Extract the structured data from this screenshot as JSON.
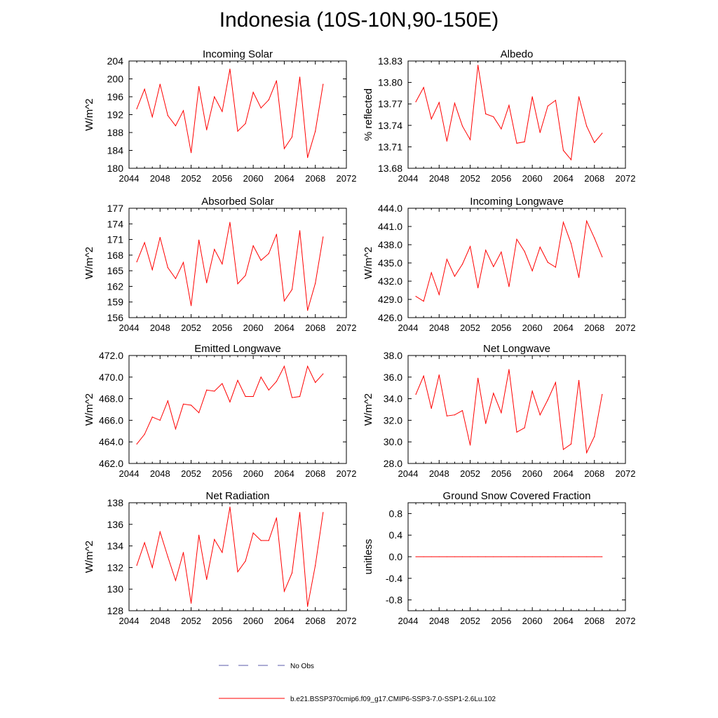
{
  "figure": {
    "title": "Indonesia (10S-10N,90-150E)",
    "line_color": "#ff0000",
    "obs_color": "#5a5aa8"
  },
  "legend": {
    "obs_label": "No Obs",
    "model_label": "b.e21.BSSP370cmip6.f09_g17.CMIP6-SSP3-7.0-SSP1-2.6Lu.102"
  },
  "chart_data": [
    {
      "type": "line",
      "title": "Incoming Solar",
      "ylabel": "W/m^2",
      "xlim": [
        2044,
        2072
      ],
      "ylim": [
        180,
        204
      ],
      "xticks": [
        "2044",
        "2048",
        "2052",
        "2056",
        "2060",
        "2064",
        "2068",
        "2072"
      ],
      "yticks": [
        "180",
        "184",
        "188",
        "192",
        "196",
        "200",
        "204"
      ],
      "x": [
        2045,
        2046,
        2047,
        2048,
        2049,
        2050,
        2051,
        2052,
        2053,
        2054,
        2055,
        2056,
        2057,
        2058,
        2059,
        2060,
        2061,
        2062,
        2063,
        2064,
        2065,
        2066,
        2067,
        2068,
        2069
      ],
      "series": [
        {
          "values": [
            193.3,
            197.7,
            191.5,
            198.8,
            191.8,
            189.5,
            192.9,
            183.5,
            198.3,
            188.6,
            196.0,
            192.7,
            202.2,
            188.3,
            190.0,
            197.0,
            193.5,
            195.3,
            199.6,
            184.4,
            187.0,
            200.4,
            182.4,
            188.3,
            198.8
          ]
        }
      ]
    },
    {
      "type": "line",
      "title": "Albedo",
      "ylabel": "% reflected",
      "xlim": [
        2044,
        2072
      ],
      "ylim": [
        13.68,
        13.83
      ],
      "xticks": [
        "2044",
        "2048",
        "2052",
        "2056",
        "2060",
        "2064",
        "2068",
        "2072"
      ],
      "yticks": [
        "13.68",
        "13.71",
        "13.74",
        "13.77",
        "13.80",
        "13.83"
      ],
      "x": [
        2045,
        2046,
        2047,
        2048,
        2049,
        2050,
        2051,
        2052,
        2053,
        2054,
        2055,
        2056,
        2057,
        2058,
        2059,
        2060,
        2061,
        2062,
        2063,
        2064,
        2065,
        2066,
        2067,
        2068,
        2069
      ],
      "series": [
        {
          "values": [
            13.773,
            13.793,
            13.749,
            13.772,
            13.718,
            13.771,
            13.739,
            13.72,
            13.824,
            13.756,
            13.752,
            13.735,
            13.768,
            13.715,
            13.717,
            13.78,
            13.73,
            13.767,
            13.775,
            13.705,
            13.692,
            13.78,
            13.739,
            13.716,
            13.729
          ]
        }
      ]
    },
    {
      "type": "line",
      "title": "Absorbed Solar",
      "ylabel": "W/m^2",
      "xlim": [
        2044,
        2072
      ],
      "ylim": [
        156,
        177
      ],
      "xticks": [
        "2044",
        "2048",
        "2052",
        "2056",
        "2060",
        "2064",
        "2068",
        "2072"
      ],
      "yticks": [
        "156",
        "159",
        "162",
        "165",
        "168",
        "171",
        "174",
        "177"
      ],
      "x": [
        2045,
        2046,
        2047,
        2048,
        2049,
        2050,
        2051,
        2052,
        2053,
        2054,
        2055,
        2056,
        2057,
        2058,
        2059,
        2060,
        2061,
        2062,
        2063,
        2064,
        2065,
        2066,
        2067,
        2068,
        2069
      ],
      "series": [
        {
          "values": [
            166.7,
            170.4,
            165.2,
            171.4,
            165.6,
            163.5,
            166.6,
            158.3,
            170.9,
            162.7,
            169.1,
            166.3,
            174.3,
            162.5,
            164.1,
            169.8,
            167.0,
            168.3,
            172.0,
            159.2,
            161.4,
            172.7,
            157.4,
            162.6,
            171.5
          ]
        }
      ]
    },
    {
      "type": "line",
      "title": "Incoming Longwave",
      "ylabel": "W/m^2",
      "xlim": [
        2044,
        2072
      ],
      "ylim": [
        426.0,
        444.0
      ],
      "xticks": [
        "2044",
        "2048",
        "2052",
        "2056",
        "2060",
        "2064",
        "2068",
        "2072"
      ],
      "yticks": [
        "426.0",
        "429.0",
        "432.0",
        "435.0",
        "438.0",
        "441.0",
        "444.0"
      ],
      "x": [
        2045,
        2046,
        2047,
        2048,
        2049,
        2050,
        2051,
        2052,
        2053,
        2054,
        2055,
        2056,
        2057,
        2058,
        2059,
        2060,
        2061,
        2062,
        2063,
        2064,
        2065,
        2066,
        2067,
        2068,
        2069
      ],
      "series": [
        {
          "values": [
            429.5,
            428.7,
            433.4,
            429.8,
            435.6,
            432.8,
            434.8,
            437.7,
            430.9,
            437.1,
            434.4,
            436.8,
            431.1,
            438.9,
            436.9,
            433.7,
            437.6,
            435.1,
            434.3,
            441.7,
            438.2,
            432.6,
            441.9,
            439.1,
            436.0
          ]
        }
      ]
    },
    {
      "type": "line",
      "title": "Emitted Longwave",
      "ylabel": "W/m^2",
      "xlim": [
        2044,
        2072
      ],
      "ylim": [
        462.0,
        472.0
      ],
      "xticks": [
        "2044",
        "2048",
        "2052",
        "2056",
        "2060",
        "2064",
        "2068",
        "2072"
      ],
      "yticks": [
        "462.0",
        "464.0",
        "466.0",
        "468.0",
        "470.0",
        "472.0"
      ],
      "x": [
        2045,
        2046,
        2047,
        2048,
        2049,
        2050,
        2051,
        2052,
        2053,
        2054,
        2055,
        2056,
        2057,
        2058,
        2059,
        2060,
        2061,
        2062,
        2063,
        2064,
        2065,
        2066,
        2067,
        2068,
        2069
      ],
      "series": [
        {
          "values": [
            463.8,
            464.7,
            466.3,
            466.0,
            467.8,
            465.2,
            467.5,
            467.4,
            466.7,
            468.8,
            468.7,
            469.4,
            467.7,
            469.7,
            468.2,
            468.2,
            470.0,
            468.8,
            469.6,
            471.0,
            468.1,
            468.2,
            471.0,
            469.5,
            470.3
          ]
        }
      ]
    },
    {
      "type": "line",
      "title": "Net Longwave",
      "ylabel": "W/m^2",
      "xlim": [
        2044,
        2072
      ],
      "ylim": [
        28.0,
        38.0
      ],
      "xticks": [
        "2044",
        "2048",
        "2052",
        "2056",
        "2060",
        "2064",
        "2068",
        "2072"
      ],
      "yticks": [
        "28.0",
        "30.0",
        "32.0",
        "34.0",
        "36.0",
        "38.0"
      ],
      "x": [
        2045,
        2046,
        2047,
        2048,
        2049,
        2050,
        2051,
        2052,
        2053,
        2054,
        2055,
        2056,
        2057,
        2058,
        2059,
        2060,
        2061,
        2062,
        2063,
        2064,
        2065,
        2066,
        2067,
        2068,
        2069
      ],
      "series": [
        {
          "values": [
            34.4,
            36.1,
            33.1,
            36.2,
            32.4,
            32.5,
            32.9,
            29.7,
            35.9,
            31.7,
            34.5,
            32.7,
            36.7,
            30.9,
            31.3,
            34.7,
            32.5,
            33.9,
            35.5,
            29.3,
            29.8,
            35.7,
            29.0,
            30.5,
            34.4
          ]
        }
      ]
    },
    {
      "type": "line",
      "title": "Net Radiation",
      "ylabel": "W/m^2",
      "xlim": [
        2044,
        2072
      ],
      "ylim": [
        128,
        138
      ],
      "xticks": [
        "2044",
        "2048",
        "2052",
        "2056",
        "2060",
        "2064",
        "2068",
        "2072"
      ],
      "yticks": [
        "128",
        "130",
        "132",
        "134",
        "136",
        "138"
      ],
      "x": [
        2045,
        2046,
        2047,
        2048,
        2049,
        2050,
        2051,
        2052,
        2053,
        2054,
        2055,
        2056,
        2057,
        2058,
        2059,
        2060,
        2061,
        2062,
        2063,
        2064,
        2065,
        2066,
        2067,
        2068,
        2069
      ],
      "series": [
        {
          "values": [
            132.2,
            134.3,
            132.0,
            135.3,
            133.0,
            130.8,
            133.4,
            128.7,
            135.0,
            130.9,
            134.6,
            133.4,
            137.6,
            131.6,
            132.6,
            135.2,
            134.5,
            134.5,
            136.6,
            129.8,
            131.5,
            137.1,
            128.4,
            132.2,
            137.1
          ]
        }
      ]
    },
    {
      "type": "line",
      "title": "Ground Snow Covered Fraction",
      "ylabel": "unitless",
      "xlim": [
        2044,
        2072
      ],
      "ylim": [
        -1.0,
        1.0
      ],
      "xticks": [
        "2044",
        "2048",
        "2052",
        "2056",
        "2060",
        "2064",
        "2068",
        "2072"
      ],
      "yticks": [
        "-0.8",
        "-0.4",
        "0.0",
        "0.4",
        "0.8"
      ],
      "ytick_values": [
        -0.8,
        -0.4,
        0.0,
        0.4,
        0.8
      ],
      "x": [
        2045,
        2046,
        2047,
        2048,
        2049,
        2050,
        2051,
        2052,
        2053,
        2054,
        2055,
        2056,
        2057,
        2058,
        2059,
        2060,
        2061,
        2062,
        2063,
        2064,
        2065,
        2066,
        2067,
        2068,
        2069
      ],
      "series": [
        {
          "values": [
            0,
            0,
            0,
            0,
            0,
            0,
            0,
            0,
            0,
            0,
            0,
            0,
            0,
            0,
            0,
            0,
            0,
            0,
            0,
            0,
            0,
            0,
            0,
            0,
            0
          ]
        }
      ]
    }
  ]
}
